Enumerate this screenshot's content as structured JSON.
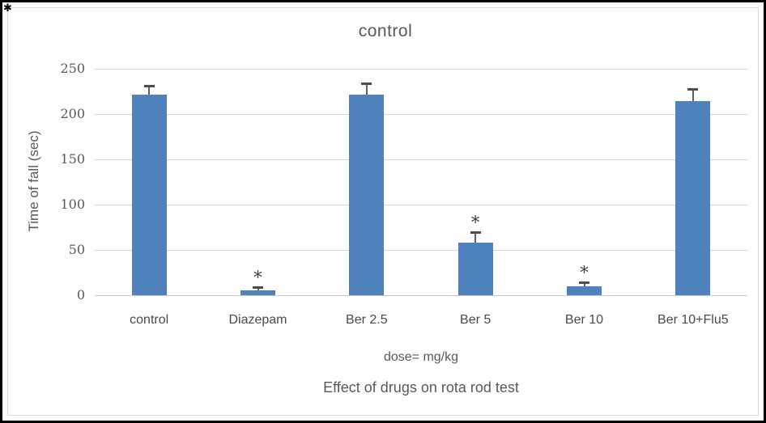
{
  "frame": {
    "corner_mark": "✱"
  },
  "chart_data": {
    "type": "bar",
    "title": "control",
    "categories": [
      "control",
      "Diazepam",
      "Ber 2.5",
      "Ber 5",
      "Ber 10",
      "Ber 10+Flu5"
    ],
    "values": [
      221,
      5,
      221,
      58,
      10,
      214
    ],
    "errors": [
      10,
      4,
      13,
      12,
      4,
      14
    ],
    "annotations": [
      "",
      "*",
      "",
      "*",
      "*",
      ""
    ],
    "ylabel": "Time of fall (sec)",
    "xlabel": "dose= mg/kg",
    "caption": "Effect of drugs on rota rod test",
    "ylim": [
      0,
      250
    ],
    "yticks": [
      0,
      50,
      100,
      150,
      200,
      250
    ],
    "grid": true,
    "legend": "none",
    "bar_color": "#4f81bd",
    "error_color": "#4d4d4d",
    "grid_color": "#d9d9d9",
    "text_color": "#595959"
  }
}
